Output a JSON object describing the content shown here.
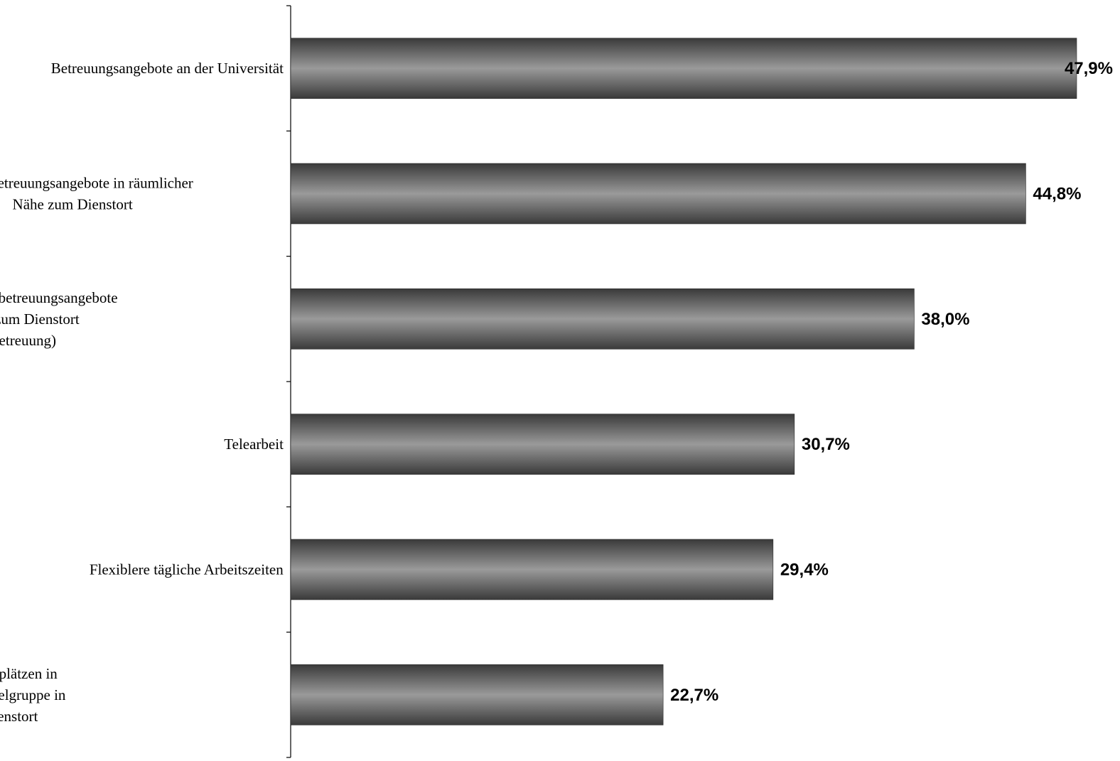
{
  "chart_data": {
    "type": "bar",
    "orientation": "horizontal",
    "categories": [
      [
        "Betreuungsangebote an der Universität"
      ],
      [
        "Ferienbetreuungsangebote in räumlicher",
        "Nähe zum Dienstort"
      ],
      [
        "Flexiblere Kurzzeitbetreuungsangebote",
        "in der Nähe zum Dienstort",
        "(Notfallbetreuung)"
      ],
      [
        "Telearbeit"
      ],
      [
        "Flexiblere tägliche Arbeitszeiten"
      ],
      [
        "Vermittlung von Betreuungsplätzen in",
        "Kindertagesstätte/Hort/Krabbelgruppe in",
        "räumlicher Nähe zum Dienstort"
      ]
    ],
    "values": [
      47.9,
      44.8,
      38.0,
      30.7,
      29.4,
      22.7
    ],
    "value_labels": [
      "47,9%",
      "44,8%",
      "38,0%",
      "30,7%",
      "29,4%",
      "22,7%"
    ],
    "unit": "%",
    "xlim": [
      0,
      47.9
    ],
    "title": "",
    "xlabel": "",
    "ylabel": "",
    "grid": false,
    "legend": "none",
    "colors": {
      "bar_edge": "#3a3a3a",
      "bar_center": "#9a9a9a",
      "axis": "#000000",
      "text": "#000000"
    }
  }
}
